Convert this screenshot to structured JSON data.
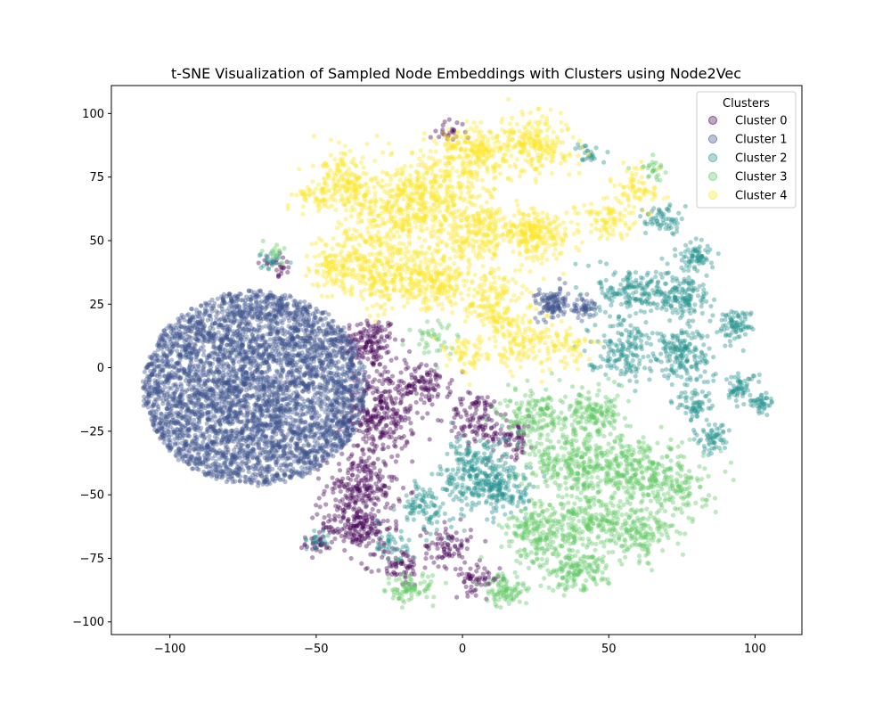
{
  "chart_data": {
    "type": "scatter",
    "title": "t-SNE Visualization of Sampled Node Embeddings with Clusters using Node2Vec",
    "xlabel": "",
    "ylabel": "",
    "xlim": [
      -120,
      116
    ],
    "ylim": [
      -105,
      111
    ],
    "xticks": [
      -100,
      -50,
      0,
      50,
      100
    ],
    "yticks": [
      -100,
      -75,
      -50,
      -25,
      0,
      25,
      50,
      75,
      100
    ],
    "grid": false,
    "legend": {
      "title": "Clusters",
      "placement": "upper right"
    },
    "series": [
      {
        "name": "Cluster 0",
        "color": "#440154",
        "blobs": [
          {
            "cx": -32,
            "cy": 10,
            "sx": 5,
            "sy": 5,
            "n": 150
          },
          {
            "cx": -28,
            "cy": -18,
            "sx": 6,
            "sy": 9,
            "n": 320
          },
          {
            "cx": -12,
            "cy": -7,
            "sx": 4,
            "sy": 4,
            "n": 90
          },
          {
            "cx": -35,
            "cy": -48,
            "sx": 6,
            "sy": 7,
            "n": 240
          },
          {
            "cx": -36,
            "cy": -63,
            "sx": 6,
            "sy": 4,
            "n": 160
          },
          {
            "cx": -22,
            "cy": -78,
            "sx": 4,
            "sy": 4,
            "n": 70
          },
          {
            "cx": 5,
            "cy": -20,
            "sx": 5,
            "sy": 5,
            "n": 110
          },
          {
            "cx": 17,
            "cy": -27,
            "sx": 4,
            "sy": 4,
            "n": 70
          },
          {
            "cx": -5,
            "cy": -70,
            "sx": 4,
            "sy": 4,
            "n": 80
          },
          {
            "cx": 5,
            "cy": -83,
            "sx": 4,
            "sy": 3,
            "n": 60
          },
          {
            "cx": -5,
            "cy": 93,
            "sx": 3,
            "sy": 2,
            "n": 25
          },
          {
            "cx": -63,
            "cy": 40,
            "sx": 3,
            "sy": 2,
            "n": 25
          },
          {
            "cx": -50,
            "cy": -70,
            "sx": 3,
            "sy": 2,
            "n": 30
          }
        ]
      },
      {
        "name": "Cluster 1",
        "color": "#3b528b",
        "disk": {
          "cx": -71,
          "cy": -8,
          "r": 38,
          "n": 4200
        },
        "blobs": [
          {
            "cx": 31,
            "cy": 25,
            "sx": 3,
            "sy": 3,
            "n": 110
          },
          {
            "cx": 41,
            "cy": 24,
            "sx": 2,
            "sy": 2,
            "n": 50
          }
        ]
      },
      {
        "name": "Cluster 2",
        "color": "#21918c",
        "blobs": [
          {
            "cx": 58,
            "cy": 30,
            "sx": 6,
            "sy": 5,
            "n": 150
          },
          {
            "cx": 75,
            "cy": 28,
            "sx": 5,
            "sy": 5,
            "n": 150
          },
          {
            "cx": 80,
            "cy": 44,
            "sx": 3,
            "sy": 3,
            "n": 70
          },
          {
            "cx": 68,
            "cy": 58,
            "sx": 3,
            "sy": 3,
            "n": 60
          },
          {
            "cx": 55,
            "cy": 8,
            "sx": 6,
            "sy": 6,
            "n": 170
          },
          {
            "cx": 75,
            "cy": 5,
            "sx": 5,
            "sy": 6,
            "n": 170
          },
          {
            "cx": 93,
            "cy": 17,
            "sx": 3,
            "sy": 3,
            "n": 80
          },
          {
            "cx": 95,
            "cy": -8,
            "sx": 3,
            "sy": 3,
            "n": 60
          },
          {
            "cx": 102,
            "cy": -14,
            "sx": 2,
            "sy": 2,
            "n": 40
          },
          {
            "cx": 80,
            "cy": -15,
            "sx": 3,
            "sy": 3,
            "n": 60
          },
          {
            "cx": 85,
            "cy": -28,
            "sx": 3,
            "sy": 3,
            "n": 60
          },
          {
            "cx": 5,
            "cy": -42,
            "sx": 6,
            "sy": 8,
            "n": 260
          },
          {
            "cx": 15,
            "cy": -48,
            "sx": 5,
            "sy": 5,
            "n": 120
          },
          {
            "cx": -13,
            "cy": -55,
            "sx": 4,
            "sy": 5,
            "n": 90
          },
          {
            "cx": -25,
            "cy": -70,
            "sx": 4,
            "sy": 3,
            "n": 40
          },
          {
            "cx": 43,
            "cy": 85,
            "sx": 2,
            "sy": 2,
            "n": 25
          },
          {
            "cx": -65,
            "cy": 42,
            "sx": 2,
            "sy": 2,
            "n": 20
          },
          {
            "cx": -50,
            "cy": -68,
            "sx": 2,
            "sy": 2,
            "n": 20
          }
        ]
      },
      {
        "name": "Cluster 3",
        "color": "#5ec962",
        "blobs": [
          {
            "cx": 35,
            "cy": -38,
            "sx": 7,
            "sy": 6,
            "n": 220
          },
          {
            "cx": 55,
            "cy": -40,
            "sx": 8,
            "sy": 6,
            "n": 250
          },
          {
            "cx": 70,
            "cy": -45,
            "sx": 7,
            "sy": 7,
            "n": 200
          },
          {
            "cx": 25,
            "cy": -18,
            "sx": 6,
            "sy": 5,
            "n": 150
          },
          {
            "cx": 45,
            "cy": -18,
            "sx": 6,
            "sy": 5,
            "n": 160
          },
          {
            "cx": 28,
            "cy": -65,
            "sx": 7,
            "sy": 6,
            "n": 240
          },
          {
            "cx": 45,
            "cy": -60,
            "sx": 6,
            "sy": 5,
            "n": 150
          },
          {
            "cx": 60,
            "cy": -65,
            "sx": 6,
            "sy": 5,
            "n": 160
          },
          {
            "cx": 38,
            "cy": -80,
            "sx": 6,
            "sy": 4,
            "n": 150
          },
          {
            "cx": 15,
            "cy": -88,
            "sx": 4,
            "sy": 3,
            "n": 90
          },
          {
            "cx": -18,
            "cy": -87,
            "sx": 4,
            "sy": 3,
            "n": 80
          },
          {
            "cx": -10,
            "cy": 10,
            "sx": 4,
            "sy": 4,
            "n": 40
          },
          {
            "cx": 65,
            "cy": 78,
            "sx": 3,
            "sy": 3,
            "n": 25
          },
          {
            "cx": -63,
            "cy": 45,
            "sx": 2,
            "sy": 2,
            "n": 15
          }
        ]
      },
      {
        "name": "Cluster 4",
        "color": "#fde725",
        "blobs": [
          {
            "cx": -40,
            "cy": 72,
            "sx": 5,
            "sy": 6,
            "n": 170
          },
          {
            "cx": -25,
            "cy": 60,
            "sx": 8,
            "sy": 9,
            "n": 320
          },
          {
            "cx": -42,
            "cy": 40,
            "sx": 5,
            "sy": 6,
            "n": 150
          },
          {
            "cx": -28,
            "cy": 35,
            "sx": 6,
            "sy": 6,
            "n": 170
          },
          {
            "cx": -10,
            "cy": 70,
            "sx": 8,
            "sy": 9,
            "n": 300
          },
          {
            "cx": 5,
            "cy": 85,
            "sx": 6,
            "sy": 5,
            "n": 220
          },
          {
            "cx": 25,
            "cy": 88,
            "sx": 6,
            "sy": 6,
            "n": 220
          },
          {
            "cx": 5,
            "cy": 55,
            "sx": 7,
            "sy": 7,
            "n": 240
          },
          {
            "cx": 25,
            "cy": 52,
            "sx": 6,
            "sy": 5,
            "n": 240
          },
          {
            "cx": -10,
            "cy": 35,
            "sx": 7,
            "sy": 6,
            "n": 260
          },
          {
            "cx": 10,
            "cy": 25,
            "sx": 6,
            "sy": 6,
            "n": 170
          },
          {
            "cx": 20,
            "cy": 10,
            "sx": 6,
            "sy": 5,
            "n": 120
          },
          {
            "cx": 35,
            "cy": 8,
            "sx": 4,
            "sy": 4,
            "n": 70
          },
          {
            "cx": 50,
            "cy": 58,
            "sx": 5,
            "sy": 4,
            "n": 90
          },
          {
            "cx": 60,
            "cy": 70,
            "sx": 4,
            "sy": 4,
            "n": 70
          },
          {
            "cx": -52,
            "cy": 68,
            "sx": 3,
            "sy": 2,
            "n": 40
          },
          {
            "cx": 0,
            "cy": 5,
            "sx": 5,
            "sy": 4,
            "n": 60
          }
        ]
      }
    ]
  }
}
